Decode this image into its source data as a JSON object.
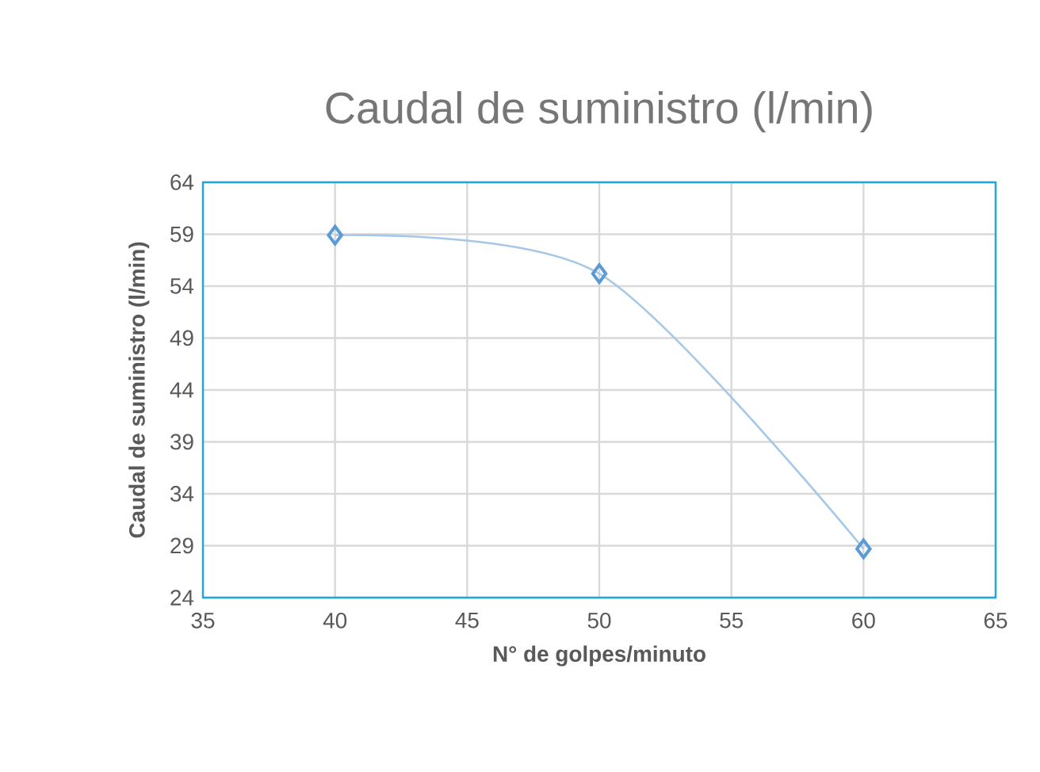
{
  "chart_data": {
    "type": "line",
    "title": "Caudal de suministro (l/min)",
    "xlabel": "N° de golpes/minuto",
    "ylabel": "Caudal de suministro (l/min)",
    "x": [
      40,
      50,
      60
    ],
    "series": [
      {
        "color": "#5b9bd5",
        "values": [
          58.9,
          55.2,
          28.7
        ]
      }
    ],
    "xlim": [
      35,
      65
    ],
    "xticks": [
      35,
      40,
      45,
      50,
      55,
      60,
      65
    ],
    "ylim": [
      24,
      64
    ],
    "yticks": [
      24,
      29,
      34,
      39,
      44,
      49,
      54,
      59,
      64
    ],
    "grid": true,
    "marker": "diamond",
    "line_style": "solid"
  }
}
